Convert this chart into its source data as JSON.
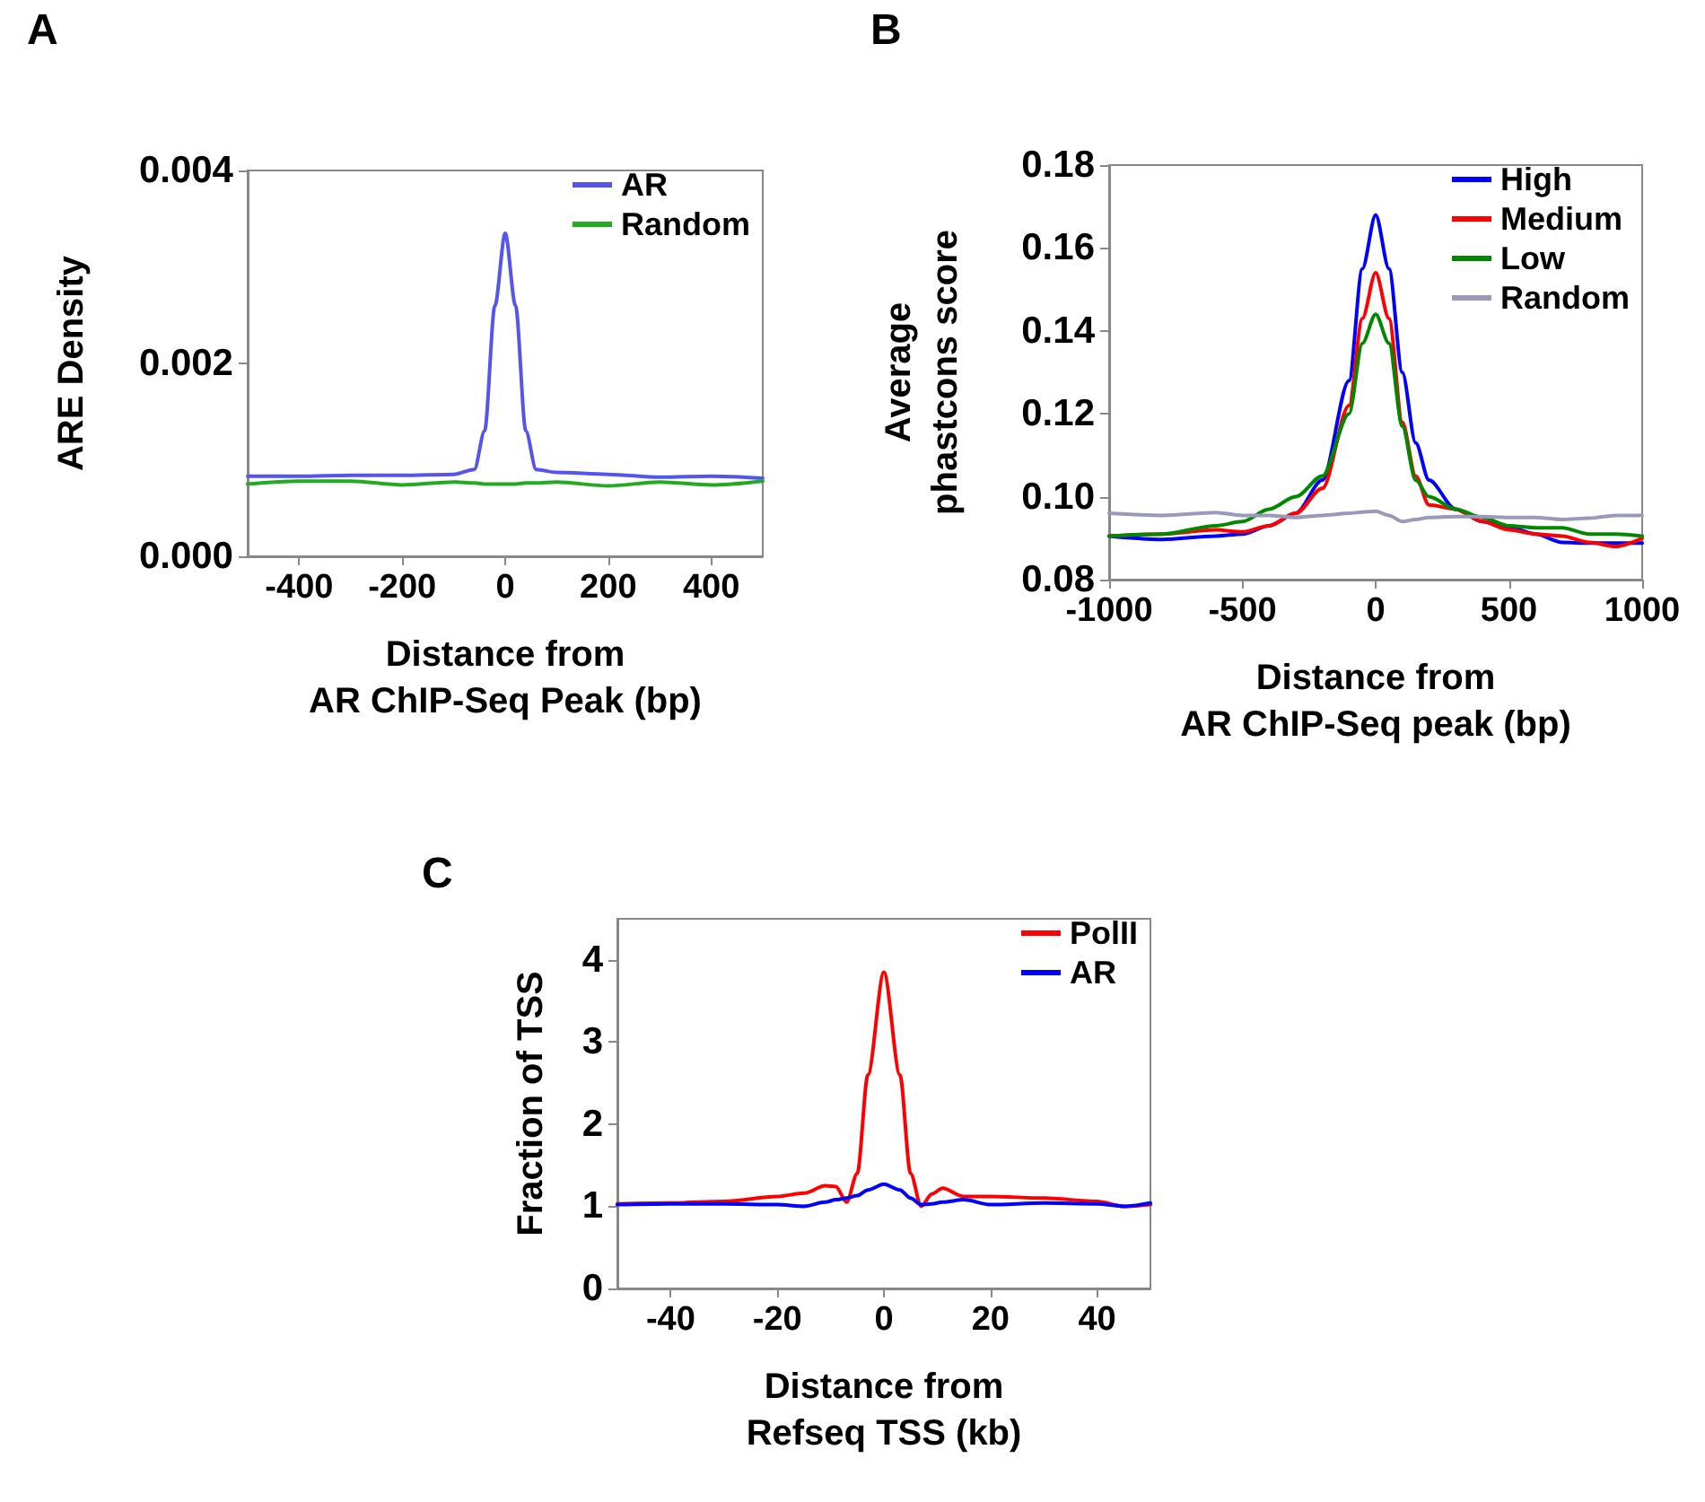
{
  "chart_data": [
    {
      "type": "line",
      "title": "A",
      "xlabel": "Distance from\nAR ChIP-Seq Peak (bp)",
      "ylabel": "ARE Density",
      "x": [
        -500,
        -400,
        -300,
        -200,
        -100,
        -60,
        -40,
        -20,
        0,
        20,
        40,
        60,
        100,
        200,
        300,
        400,
        500
      ],
      "series": [
        {
          "name": "AR",
          "color": "#5555ee",
          "values": [
            0.00083,
            0.00083,
            0.00084,
            0.00084,
            0.00085,
            0.0009,
            0.0013,
            0.0026,
            0.00335,
            0.0026,
            0.0013,
            0.0009,
            0.00087,
            0.00085,
            0.00082,
            0.00083,
            0.00081
          ]
        },
        {
          "name": "Random",
          "color": "#22aa22",
          "values": [
            0.00075,
            0.00078,
            0.00078,
            0.00074,
            0.00077,
            0.00076,
            0.00075,
            0.00075,
            0.00075,
            0.00075,
            0.00076,
            0.00076,
            0.00077,
            0.00073,
            0.00077,
            0.00074,
            0.00078
          ]
        }
      ],
      "xlim": [
        -500,
        500
      ],
      "xticks": [
        -400,
        -200,
        0,
        200,
        400
      ],
      "ylim": [
        0,
        0.004
      ],
      "yticks": [
        {
          "value": 0,
          "label": "0.000"
        },
        {
          "value": 0.002,
          "label": "0.002"
        },
        {
          "value": 0.004,
          "label": "0.004"
        }
      ],
      "legend": "top right",
      "grid": false
    },
    {
      "type": "line",
      "title": "B",
      "xlabel": "Distance from\nAR ChIP-Seq peak (bp)",
      "ylabel": "Average\nphastcons score",
      "x": [
        -1000,
        -800,
        -600,
        -500,
        -400,
        -300,
        -200,
        -100,
        -50,
        0,
        50,
        100,
        150,
        200,
        300,
        400,
        500,
        600,
        700,
        800,
        900,
        1000
      ],
      "series": [
        {
          "name": "High",
          "color": "#0000ff",
          "values": [
            0.0905,
            0.0897,
            0.0905,
            0.091,
            0.093,
            0.096,
            0.104,
            0.128,
            0.155,
            0.168,
            0.155,
            0.13,
            0.113,
            0.104,
            0.097,
            0.094,
            0.0926,
            0.091,
            0.089,
            0.0888,
            0.0888,
            0.0888
          ]
        },
        {
          "name": "Medium",
          "color": "#ff0000",
          "values": [
            0.0905,
            0.091,
            0.092,
            0.0915,
            0.093,
            0.096,
            0.102,
            0.122,
            0.143,
            0.154,
            0.143,
            0.118,
            0.105,
            0.098,
            0.097,
            0.094,
            0.092,
            0.091,
            0.0905,
            0.089,
            0.088,
            0.09
          ]
        },
        {
          "name": "Low",
          "color": "#008800",
          "values": [
            0.0905,
            0.091,
            0.093,
            0.094,
            0.097,
            0.1,
            0.105,
            0.12,
            0.137,
            0.144,
            0.137,
            0.117,
            0.104,
            0.1,
            0.097,
            0.095,
            0.093,
            0.0925,
            0.0925,
            0.091,
            0.091,
            0.0905
          ]
        },
        {
          "name": "Random",
          "color": "#9999bb",
          "values": [
            0.096,
            0.0955,
            0.0962,
            0.0955,
            0.0955,
            0.095,
            0.0955,
            0.096,
            0.0963,
            0.0965,
            0.0955,
            0.094,
            0.0945,
            0.095,
            0.0952,
            0.0952,
            0.095,
            0.095,
            0.0945,
            0.0948,
            0.0955,
            0.0955
          ]
        }
      ],
      "xlim": [
        -1000,
        1000
      ],
      "xticks": [
        -1000,
        -500,
        0,
        500,
        1000
      ],
      "ylim": [
        0.08,
        0.18
      ],
      "yticks": [
        {
          "value": 0.08,
          "label": "0.08"
        },
        {
          "value": 0.1,
          "label": "0.10"
        },
        {
          "value": 0.12,
          "label": "0.12"
        },
        {
          "value": 0.14,
          "label": "0.14"
        },
        {
          "value": 0.16,
          "label": "0.16"
        },
        {
          "value": 0.18,
          "label": "0.18"
        }
      ],
      "legend": "top right",
      "grid": false
    },
    {
      "type": "line",
      "title": "C",
      "xlabel": "Distance from\nRefseq TSS (kb)",
      "ylabel": "Fraction of TSS",
      "x": [
        -50,
        -40,
        -30,
        -20,
        -15,
        -11,
        -9,
        -7,
        -5,
        -3,
        0,
        3,
        5,
        7,
        9,
        11,
        15,
        20,
        30,
        40,
        45,
        50
      ],
      "series": [
        {
          "name": "PolII",
          "color": "#ff0000",
          "values": [
            1.03,
            1.04,
            1.06,
            1.12,
            1.16,
            1.25,
            1.24,
            1.05,
            1.4,
            2.6,
            3.85,
            2.6,
            1.4,
            1.0,
            1.15,
            1.22,
            1.12,
            1.12,
            1.1,
            1.06,
            1.0,
            1.02
          ]
        },
        {
          "name": "AR",
          "color": "#0000ff",
          "values": [
            1.02,
            1.03,
            1.03,
            1.02,
            1.0,
            1.05,
            1.08,
            1.1,
            1.13,
            1.2,
            1.27,
            1.2,
            1.1,
            1.02,
            1.03,
            1.05,
            1.08,
            1.02,
            1.04,
            1.03,
            1.0,
            1.04
          ]
        }
      ],
      "xlim": [
        -50,
        50
      ],
      "xticks": [
        -40,
        -20,
        0,
        20,
        40
      ],
      "ylim": [
        0,
        4.5
      ],
      "yticks": [
        0,
        1,
        2,
        3,
        4
      ],
      "legend": "top right",
      "grid": false
    }
  ]
}
